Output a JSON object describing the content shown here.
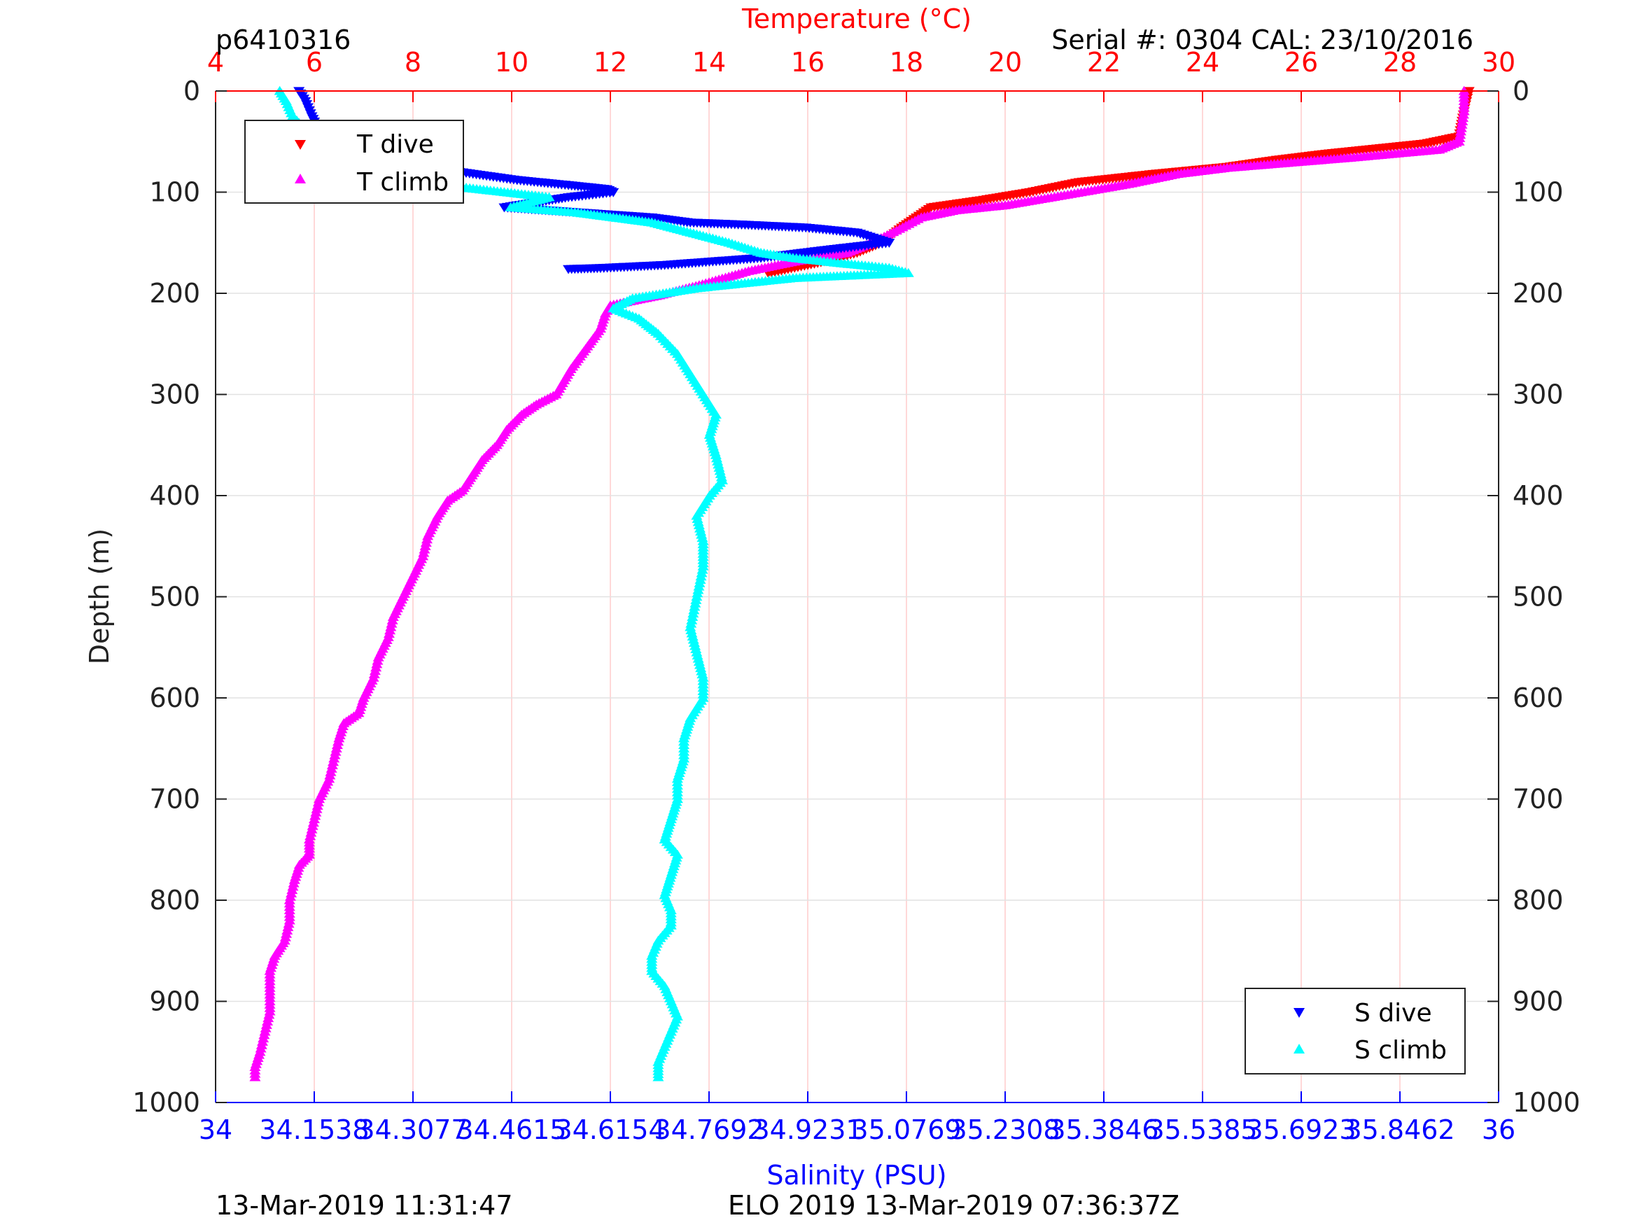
{
  "header": {
    "profile_id": "p6410316",
    "serial_info": "Serial #: 0304  CAL: 23/10/2016"
  },
  "footer": {
    "left_timestamp": "13-Mar-2019 11:31:47",
    "right_mission": "ELO 2019 13-Mar-2019 07:36:37Z"
  },
  "colors": {
    "temperature_axis": "#ff0000",
    "salinity_axis": "#0000ff",
    "t_dive": "#ff0000",
    "t_climb": "#ff00ff",
    "s_dive": "#0000ff",
    "s_climb": "#00ffff"
  },
  "chart_data": {
    "type": "scatter",
    "yaxis": {
      "label": "Depth (m)",
      "range": [
        0,
        1000
      ],
      "reversed": true,
      "ticks": [
        0,
        100,
        200,
        300,
        400,
        500,
        600,
        700,
        800,
        900,
        1000
      ],
      "tick_labels": [
        "0",
        "100",
        "200",
        "300",
        "400",
        "500",
        "600",
        "700",
        "800",
        "900",
        "1000"
      ]
    },
    "xaxis_top": {
      "label": "Temperature (°C)",
      "range": [
        4,
        30
      ],
      "ticks": [
        4,
        6,
        8,
        10,
        12,
        14,
        16,
        18,
        20,
        22,
        24,
        26,
        28,
        30
      ],
      "tick_labels": [
        "4",
        "6",
        "8",
        "10",
        "12",
        "14",
        "16",
        "18",
        "20",
        "22",
        "24",
        "26",
        "28",
        "30"
      ]
    },
    "xaxis_bottom": {
      "label": "Salinity (PSU)",
      "range": [
        34,
        36
      ],
      "ticks": [
        34,
        34.1538,
        34.3077,
        34.4615,
        34.6154,
        34.7692,
        34.9231,
        35.0769,
        35.2308,
        35.3846,
        35.5385,
        35.6923,
        35.8462,
        36
      ],
      "tick_labels": [
        "34",
        "34.1538",
        "34.3077",
        "34.4615",
        "34.6154",
        "34.7692",
        "34.9231",
        "35.0769",
        "35.2308",
        "35.3846",
        "35.5385",
        "35.6923",
        "35.8462",
        "36"
      ]
    },
    "grid": true,
    "legends": [
      {
        "position": "top-left",
        "entries": [
          {
            "label": "T dive",
            "marker": "triangle-down",
            "color": "#ff0000"
          },
          {
            "label": "T climb",
            "marker": "triangle-up",
            "color": "#ff00ff"
          }
        ]
      },
      {
        "position": "bottom-right",
        "entries": [
          {
            "label": "S dive",
            "marker": "triangle-down",
            "color": "#0000ff"
          },
          {
            "label": "S climb",
            "marker": "triangle-up",
            "color": "#00ffff"
          }
        ]
      }
    ],
    "series": [
      {
        "name": "T dive",
        "axis": "temperature",
        "marker": "triangle-down",
        "color": "#ff0000",
        "points": [
          [
            29.4,
            0
          ],
          [
            29.3,
            20
          ],
          [
            29.2,
            45
          ],
          [
            28.5,
            52
          ],
          [
            26.5,
            62
          ],
          [
            25.5,
            68
          ],
          [
            24.5,
            75
          ],
          [
            23,
            82
          ],
          [
            21.5,
            90
          ],
          [
            20.5,
            100
          ],
          [
            19.5,
            108
          ],
          [
            18.5,
            115
          ],
          [
            18.2,
            125
          ],
          [
            17.9,
            135
          ],
          [
            17.5,
            150
          ],
          [
            17,
            160
          ],
          [
            16.2,
            170
          ],
          [
            15.2,
            180
          ]
        ]
      },
      {
        "name": "T climb",
        "axis": "temperature",
        "marker": "triangle-up",
        "color": "#ff00ff",
        "points": [
          [
            29.3,
            0
          ],
          [
            29.3,
            20
          ],
          [
            29.2,
            50
          ],
          [
            28.8,
            58
          ],
          [
            27,
            66
          ],
          [
            26,
            70
          ],
          [
            24.5,
            76
          ],
          [
            23.5,
            82
          ],
          [
            22.5,
            92
          ],
          [
            21.2,
            103
          ],
          [
            20,
            113
          ],
          [
            19,
            118
          ],
          [
            18.3,
            125
          ],
          [
            17.8,
            138
          ],
          [
            17.3,
            150
          ],
          [
            16.8,
            160
          ],
          [
            15.8,
            168
          ],
          [
            14.8,
            178
          ],
          [
            13.8,
            192
          ],
          [
            13,
            202
          ],
          [
            12,
            212
          ],
          [
            11.9,
            220
          ],
          [
            11.8,
            235
          ],
          [
            11.5,
            255
          ],
          [
            11.2,
            275
          ],
          [
            10.9,
            300
          ],
          [
            10.5,
            310
          ],
          [
            10.2,
            320
          ],
          [
            9.9,
            335
          ],
          [
            9.7,
            350
          ],
          [
            9.4,
            365
          ],
          [
            9.2,
            380
          ],
          [
            9.0,
            395
          ],
          [
            8.7,
            405
          ],
          [
            8.5,
            420
          ],
          [
            8.3,
            440
          ],
          [
            8.2,
            460
          ],
          [
            8.0,
            480
          ],
          [
            7.8,
            500
          ],
          [
            7.6,
            520
          ],
          [
            7.5,
            540
          ],
          [
            7.3,
            560
          ],
          [
            7.2,
            580
          ],
          [
            7.0,
            600
          ],
          [
            6.9,
            615
          ],
          [
            6.6,
            625
          ],
          [
            6.5,
            640
          ],
          [
            6.4,
            660
          ],
          [
            6.3,
            680
          ],
          [
            6.1,
            700
          ],
          [
            6.0,
            720
          ],
          [
            5.9,
            740
          ],
          [
            5.9,
            755
          ],
          [
            5.7,
            765
          ],
          [
            5.6,
            780
          ],
          [
            5.5,
            800
          ],
          [
            5.5,
            820
          ],
          [
            5.4,
            840
          ],
          [
            5.2,
            855
          ],
          [
            5.1,
            870
          ],
          [
            5.1,
            890
          ],
          [
            5.1,
            910
          ],
          [
            5.0,
            930
          ],
          [
            4.9,
            950
          ],
          [
            4.8,
            965
          ],
          [
            4.8,
            975
          ]
        ]
      },
      {
        "name": "S dive",
        "axis": "salinity",
        "marker": "triangle-down",
        "color": "#0000ff",
        "points": [
          [
            34.13,
            0
          ],
          [
            34.14,
            10
          ],
          [
            34.15,
            25
          ],
          [
            34.16,
            38
          ],
          [
            34.22,
            45
          ],
          [
            34.3,
            50
          ],
          [
            34.34,
            58
          ],
          [
            34.36,
            65
          ],
          [
            34.37,
            72
          ],
          [
            34.38,
            80
          ],
          [
            34.47,
            88
          ],
          [
            34.55,
            93
          ],
          [
            34.61,
            97
          ],
          [
            34.62,
            100
          ],
          [
            34.55,
            105
          ],
          [
            34.5,
            110
          ],
          [
            34.45,
            115
          ],
          [
            34.68,
            125
          ],
          [
            34.74,
            130
          ],
          [
            34.82,
            132
          ],
          [
            34.92,
            135
          ],
          [
            35.0,
            140
          ],
          [
            35.05,
            150
          ],
          [
            34.98,
            155
          ],
          [
            34.94,
            158
          ],
          [
            34.85,
            165
          ],
          [
            34.7,
            172
          ],
          [
            34.6,
            175
          ],
          [
            34.55,
            176
          ]
        ]
      },
      {
        "name": "S climb",
        "axis": "salinity",
        "marker": "triangle-up",
        "color": "#00ffff",
        "points": [
          [
            34.1,
            0
          ],
          [
            34.11,
            10
          ],
          [
            34.12,
            25
          ],
          [
            34.14,
            38
          ],
          [
            34.2,
            45
          ],
          [
            34.3,
            50
          ],
          [
            34.3,
            58
          ],
          [
            34.22,
            70
          ],
          [
            34.2,
            75
          ],
          [
            34.3,
            85
          ],
          [
            34.38,
            90
          ],
          [
            34.38,
            95
          ],
          [
            34.45,
            100
          ],
          [
            34.52,
            105
          ],
          [
            34.46,
            115
          ],
          [
            34.56,
            120
          ],
          [
            34.62,
            125
          ],
          [
            34.68,
            130
          ],
          [
            34.74,
            140
          ],
          [
            34.8,
            150
          ],
          [
            34.85,
            160
          ],
          [
            34.9,
            165
          ],
          [
            34.97,
            170
          ],
          [
            35.05,
            175
          ],
          [
            35.08,
            180
          ],
          [
            34.9,
            185
          ],
          [
            34.75,
            195
          ],
          [
            34.65,
            205
          ],
          [
            34.62,
            215
          ],
          [
            34.66,
            225
          ],
          [
            34.69,
            240
          ],
          [
            34.72,
            260
          ],
          [
            34.74,
            280
          ],
          [
            34.76,
            300
          ],
          [
            34.78,
            320
          ],
          [
            34.77,
            340
          ],
          [
            34.78,
            360
          ],
          [
            34.79,
            385
          ],
          [
            34.77,
            400
          ],
          [
            34.75,
            420
          ],
          [
            34.76,
            445
          ],
          [
            34.76,
            470
          ],
          [
            34.75,
            500
          ],
          [
            34.74,
            530
          ],
          [
            34.75,
            555
          ],
          [
            34.76,
            580
          ],
          [
            34.76,
            600
          ],
          [
            34.74,
            620
          ],
          [
            34.73,
            640
          ],
          [
            34.73,
            660
          ],
          [
            34.72,
            680
          ],
          [
            34.72,
            700
          ],
          [
            34.71,
            720
          ],
          [
            34.7,
            740
          ],
          [
            34.72,
            755
          ],
          [
            34.71,
            775
          ],
          [
            34.7,
            795
          ],
          [
            34.71,
            810
          ],
          [
            34.71,
            825
          ],
          [
            34.69,
            840
          ],
          [
            34.68,
            855
          ],
          [
            34.68,
            870
          ],
          [
            34.7,
            885
          ],
          [
            34.71,
            900
          ],
          [
            34.72,
            915
          ],
          [
            34.71,
            930
          ],
          [
            34.7,
            945
          ],
          [
            34.69,
            960
          ],
          [
            34.69,
            975
          ]
        ]
      }
    ]
  }
}
